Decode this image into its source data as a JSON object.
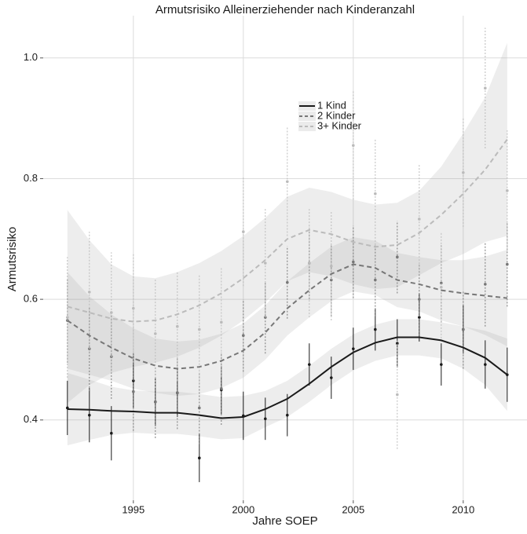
{
  "chart_data": {
    "type": "smooth-line",
    "title": "Armutsrisiko Alleinerziehender nach Kinderanzahl",
    "x_label": "Jahre SOEP",
    "y_label": "Armutsrisiko",
    "x": [
      1992,
      1993,
      1994,
      1995,
      1996,
      1997,
      1998,
      1999,
      2000,
      2001,
      2002,
      2003,
      2004,
      2005,
      2006,
      2007,
      2008,
      2009,
      2010,
      2011,
      2012
    ],
    "xlim": [
      1990.9,
      2012.9
    ],
    "xticks": [
      1995,
      2000,
      2005,
      2010
    ],
    "ylim": [
      0.267,
      1.07
    ],
    "yticks": [
      0.4,
      0.6,
      0.8,
      {
        "value": 1.0,
        "label": "1.0"
      }
    ],
    "grid": true,
    "legend_position": "top-center",
    "series": [
      {
        "name": "1 Kind",
        "color": "#1a1a1a",
        "dash": "solid",
        "values": [
          0.418,
          0.417,
          0.415,
          0.414,
          0.412,
          0.412,
          0.408,
          0.403,
          0.405,
          0.418,
          0.435,
          0.46,
          0.488,
          0.512,
          0.528,
          0.537,
          0.537,
          0.532,
          0.52,
          0.503,
          0.475
        ],
        "band_lower": [
          0.358,
          0.367,
          0.375,
          0.379,
          0.377,
          0.377,
          0.373,
          0.368,
          0.37,
          0.388,
          0.405,
          0.43,
          0.458,
          0.482,
          0.498,
          0.507,
          0.507,
          0.502,
          0.485,
          0.458,
          0.415
        ],
        "band_upper": [
          0.478,
          0.467,
          0.455,
          0.449,
          0.447,
          0.447,
          0.443,
          0.438,
          0.44,
          0.448,
          0.465,
          0.49,
          0.518,
          0.542,
          0.558,
          0.567,
          0.567,
          0.562,
          0.555,
          0.548,
          0.535
        ],
        "points": [
          0.42,
          0.408,
          0.378,
          0.465,
          0.43,
          0.445,
          0.337,
          0.45,
          0.407,
          0.402,
          0.408,
          0.492,
          0.47,
          0.518,
          0.55,
          0.527,
          0.57,
          0.492,
          0.55,
          0.492,
          0.475
        ],
        "errors": [
          0.045,
          0.045,
          0.045,
          0.045,
          0.04,
          0.04,
          0.04,
          0.04,
          0.04,
          0.035,
          0.035,
          0.035,
          0.035,
          0.035,
          0.035,
          0.04,
          0.04,
          0.035,
          0.04,
          0.04,
          0.045
        ]
      },
      {
        "name": "2 Kinder",
        "color": "#777777",
        "dash": "dashed",
        "values": [
          0.565,
          0.54,
          0.52,
          0.502,
          0.49,
          0.485,
          0.488,
          0.498,
          0.515,
          0.545,
          0.585,
          0.615,
          0.642,
          0.658,
          0.652,
          0.632,
          0.625,
          0.615,
          0.61,
          0.606,
          0.602
        ],
        "band_lower": [
          0.485,
          0.475,
          0.465,
          0.452,
          0.445,
          0.44,
          0.443,
          0.453,
          0.47,
          0.5,
          0.54,
          0.57,
          0.597,
          0.613,
          0.607,
          0.587,
          0.58,
          0.565,
          0.555,
          0.541,
          0.522
        ],
        "band_upper": [
          0.645,
          0.605,
          0.575,
          0.552,
          0.535,
          0.53,
          0.533,
          0.543,
          0.56,
          0.59,
          0.63,
          0.66,
          0.687,
          0.703,
          0.697,
          0.677,
          0.67,
          0.665,
          0.665,
          0.671,
          0.682
        ],
        "points": [
          0.565,
          0.518,
          0.505,
          0.447,
          0.43,
          0.445,
          0.42,
          0.452,
          0.54,
          0.57,
          0.628,
          0.66,
          0.632,
          0.662,
          0.632,
          0.67,
          0.6,
          0.627,
          0.55,
          0.625,
          0.658
        ],
        "errors": [
          0.07,
          0.07,
          0.07,
          0.065,
          0.06,
          0.06,
          0.06,
          0.06,
          0.06,
          0.06,
          0.06,
          0.06,
          0.06,
          0.06,
          0.06,
          0.06,
          0.06,
          0.065,
          0.065,
          0.07,
          0.07
        ]
      },
      {
        "name": "3+ Kinder",
        "color": "#bbbbbb",
        "dash": "dashed",
        "values": [
          0.588,
          0.578,
          0.568,
          0.563,
          0.565,
          0.575,
          0.59,
          0.61,
          0.635,
          0.665,
          0.7,
          0.715,
          0.708,
          0.695,
          0.687,
          0.69,
          0.71,
          0.74,
          0.775,
          0.815,
          0.865
        ],
        "band_lower": [
          0.428,
          0.458,
          0.478,
          0.488,
          0.495,
          0.505,
          0.52,
          0.54,
          0.565,
          0.595,
          0.63,
          0.645,
          0.638,
          0.625,
          0.617,
          0.62,
          0.64,
          0.66,
          0.675,
          0.695,
          0.705
        ],
        "band_upper": [
          0.748,
          0.698,
          0.658,
          0.638,
          0.635,
          0.645,
          0.66,
          0.68,
          0.705,
          0.735,
          0.77,
          0.785,
          0.778,
          0.765,
          0.757,
          0.76,
          0.78,
          0.82,
          0.875,
          0.935,
          1.025
        ],
        "points": [
          0.57,
          0.612,
          0.578,
          0.585,
          0.543,
          0.555,
          0.55,
          0.562,
          0.712,
          0.66,
          0.795,
          0.66,
          0.655,
          0.855,
          0.775,
          0.442,
          0.733,
          0.62,
          0.81,
          0.95,
          0.78
        ],
        "errors": [
          0.1,
          0.1,
          0.1,
          0.09,
          0.09,
          0.09,
          0.09,
          0.09,
          0.09,
          0.09,
          0.09,
          0.09,
          0.09,
          0.09,
          0.09,
          0.09,
          0.09,
          0.09,
          0.09,
          0.1,
          0.1
        ]
      }
    ]
  }
}
